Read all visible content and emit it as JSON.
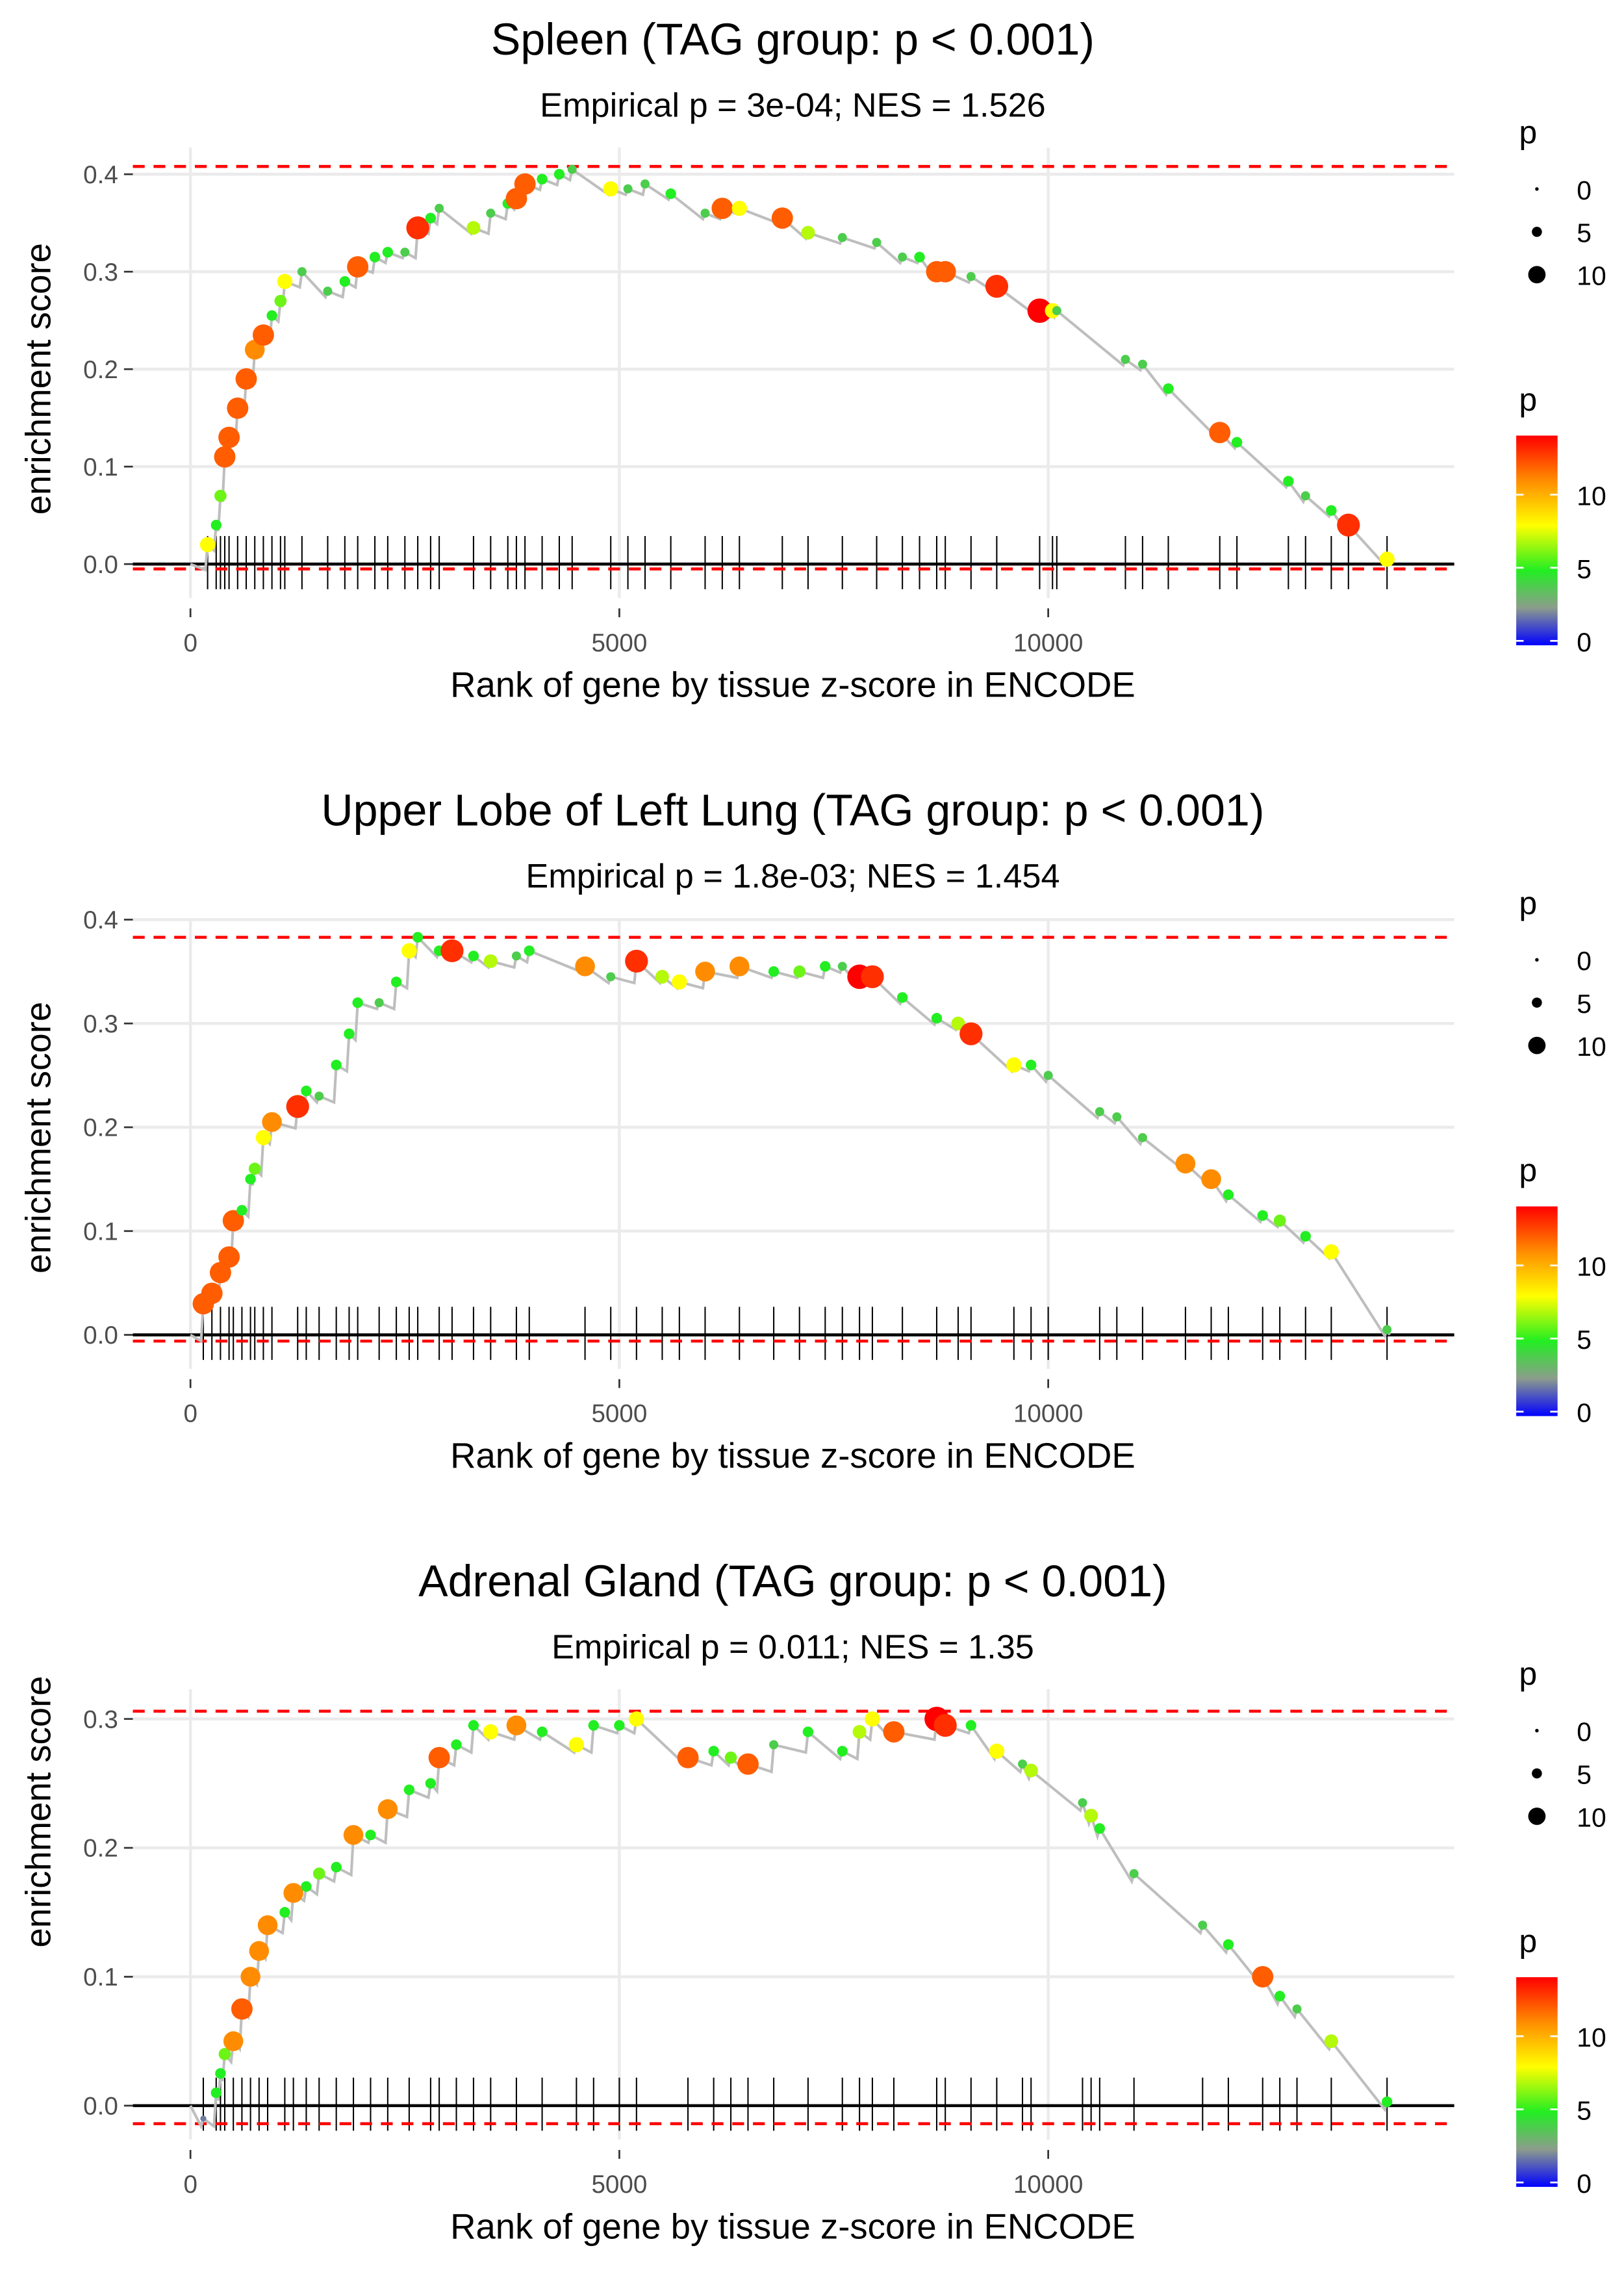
{
  "legend": {
    "size_title": "p",
    "size_breaks": [
      0,
      5,
      10
    ],
    "size_labels": [
      "0",
      "5",
      "10"
    ],
    "color_title": "p",
    "color_breaks": [
      0,
      5,
      10
    ],
    "color_labels": [
      "0",
      "5",
      "10"
    ],
    "color_limits": [
      0,
      14
    ],
    "color_stops": [
      {
        "p": 0,
        "color": "#0000ff"
      },
      {
        "p": 2.5,
        "color": "#8c9c8c"
      },
      {
        "p": 5,
        "color": "#22ee22"
      },
      {
        "p": 8,
        "color": "#ffff00"
      },
      {
        "p": 11,
        "color": "#ff8c00"
      },
      {
        "p": 14,
        "color": "#ff0000"
      }
    ]
  },
  "colors": {
    "curve": "#bebebe",
    "dashed": "#ff0000",
    "rug": "#000000",
    "zero_line": "#000000",
    "grid": "#ebebeb"
  },
  "chart_data": [
    {
      "type": "line",
      "title": "Spleen (TAG group: p < 0.001)",
      "subtitle": "Empirical p = 3e-04; NES = 1.526",
      "xlabel": "Rank of gene by tissue z-score in ENCODE",
      "ylabel": "enrichment score",
      "xlim": [
        -700,
        14700
      ],
      "ylim": [
        -0.027,
        0.427
      ],
      "xticks": [
        0,
        5000,
        10000
      ],
      "xtick_labels": [
        "0",
        "5000",
        "10000"
      ],
      "yticks": [
        0,
        0.1,
        0.2,
        0.3,
        0.4
      ],
      "ytick_labels": [
        "0.0",
        "0.1",
        "0.2",
        "0.3",
        "0.4"
      ],
      "max_es": 0.408,
      "min_es": -0.005,
      "n_genes": 13980,
      "hits": [
        [
          200,
          0.02,
          8
        ],
        [
          300,
          0.04,
          5
        ],
        [
          350,
          0.07,
          6
        ],
        [
          400,
          0.11,
          12
        ],
        [
          450,
          0.13,
          12
        ],
        [
          550,
          0.16,
          12
        ],
        [
          650,
          0.19,
          12
        ],
        [
          750,
          0.22,
          11
        ],
        [
          850,
          0.235,
          12
        ],
        [
          950,
          0.255,
          5
        ],
        [
          1050,
          0.27,
          6
        ],
        [
          1100,
          0.29,
          8
        ],
        [
          1300,
          0.3,
          4
        ],
        [
          1600,
          0.28,
          4
        ],
        [
          1800,
          0.29,
          5
        ],
        [
          1950,
          0.305,
          12
        ],
        [
          2150,
          0.315,
          5
        ],
        [
          2300,
          0.32,
          5
        ],
        [
          2500,
          0.32,
          4
        ],
        [
          2650,
          0.345,
          13
        ],
        [
          2800,
          0.355,
          5
        ],
        [
          2900,
          0.365,
          4
        ],
        [
          3300,
          0.345,
          7
        ],
        [
          3500,
          0.36,
          4
        ],
        [
          3700,
          0.37,
          5
        ],
        [
          3800,
          0.375,
          12
        ],
        [
          3900,
          0.39,
          12
        ],
        [
          4100,
          0.395,
          5
        ],
        [
          4300,
          0.4,
          5
        ],
        [
          4450,
          0.405,
          4
        ],
        [
          4900,
          0.385,
          8
        ],
        [
          5100,
          0.385,
          4
        ],
        [
          5300,
          0.39,
          4
        ],
        [
          5600,
          0.38,
          5
        ],
        [
          6000,
          0.36,
          4
        ],
        [
          6200,
          0.365,
          12
        ],
        [
          6400,
          0.365,
          8
        ],
        [
          6900,
          0.355,
          12
        ],
        [
          7200,
          0.34,
          7
        ],
        [
          7600,
          0.335,
          4
        ],
        [
          8000,
          0.33,
          4
        ],
        [
          8300,
          0.315,
          4
        ],
        [
          8500,
          0.315,
          5
        ],
        [
          8700,
          0.3,
          12
        ],
        [
          8800,
          0.3,
          12
        ],
        [
          9100,
          0.295,
          4
        ],
        [
          9400,
          0.285,
          13
        ],
        [
          9900,
          0.26,
          14
        ],
        [
          10050,
          0.26,
          8
        ],
        [
          10100,
          0.26,
          4
        ],
        [
          10900,
          0.21,
          4
        ],
        [
          11100,
          0.205,
          4
        ],
        [
          11400,
          0.18,
          5
        ],
        [
          12000,
          0.135,
          12
        ],
        [
          12200,
          0.125,
          5
        ],
        [
          12800,
          0.085,
          5
        ],
        [
          13000,
          0.07,
          4
        ],
        [
          13300,
          0.055,
          5
        ],
        [
          13500,
          0.04,
          13
        ],
        [
          13950,
          0.005,
          8
        ]
      ]
    },
    {
      "type": "line",
      "title": "Upper Lobe of Left Lung (TAG group: p < 0.001)",
      "subtitle": "Empirical p = 1.8e-03; NES = 1.454",
      "xlabel": "Rank of gene by tissue z-score in ENCODE",
      "ylabel": "enrichment score",
      "xlim": [
        -700,
        14700
      ],
      "ylim": [
        -0.02,
        0.41
      ],
      "xticks": [
        0,
        5000,
        10000
      ],
      "xtick_labels": [
        "0",
        "5000",
        "10000"
      ],
      "yticks": [
        0,
        0.1,
        0.2,
        0.3,
        0.4
      ],
      "ytick_labels": [
        "0.0",
        "0.1",
        "0.2",
        "0.3",
        "0.4"
      ],
      "max_es": 0.383,
      "min_es": -0.006,
      "n_genes": 13980,
      "hits": [
        [
          150,
          0.03,
          12
        ],
        [
          250,
          0.04,
          12
        ],
        [
          350,
          0.06,
          12
        ],
        [
          450,
          0.075,
          12
        ],
        [
          500,
          0.11,
          12
        ],
        [
          600,
          0.12,
          5
        ],
        [
          700,
          0.15,
          5
        ],
        [
          750,
          0.16,
          6
        ],
        [
          850,
          0.19,
          8
        ],
        [
          950,
          0.205,
          11
        ],
        [
          1250,
          0.22,
          13
        ],
        [
          1350,
          0.235,
          5
        ],
        [
          1500,
          0.23,
          4
        ],
        [
          1700,
          0.26,
          5
        ],
        [
          1850,
          0.29,
          5
        ],
        [
          1950,
          0.32,
          5
        ],
        [
          2200,
          0.32,
          4
        ],
        [
          2400,
          0.34,
          5
        ],
        [
          2550,
          0.37,
          8
        ],
        [
          2650,
          0.383,
          5
        ],
        [
          2900,
          0.37,
          5
        ],
        [
          3050,
          0.37,
          13
        ],
        [
          3300,
          0.365,
          5
        ],
        [
          3500,
          0.36,
          7
        ],
        [
          3800,
          0.365,
          4
        ],
        [
          3950,
          0.37,
          5
        ],
        [
          4600,
          0.355,
          11
        ],
        [
          4900,
          0.345,
          4
        ],
        [
          5200,
          0.36,
          13
        ],
        [
          5500,
          0.345,
          7
        ],
        [
          5700,
          0.34,
          8
        ],
        [
          6000,
          0.35,
          11
        ],
        [
          6400,
          0.355,
          11
        ],
        [
          6800,
          0.35,
          5
        ],
        [
          7100,
          0.35,
          6
        ],
        [
          7400,
          0.355,
          5
        ],
        [
          7600,
          0.355,
          4
        ],
        [
          7800,
          0.345,
          14
        ],
        [
          7950,
          0.345,
          13
        ],
        [
          8300,
          0.325,
          5
        ],
        [
          8700,
          0.305,
          5
        ],
        [
          8950,
          0.3,
          7
        ],
        [
          9100,
          0.29,
          13
        ],
        [
          9600,
          0.26,
          8
        ],
        [
          9800,
          0.26,
          5
        ],
        [
          10000,
          0.25,
          4
        ],
        [
          10600,
          0.215,
          4
        ],
        [
          10800,
          0.21,
          4
        ],
        [
          11100,
          0.19,
          4
        ],
        [
          11600,
          0.165,
          11
        ],
        [
          11900,
          0.15,
          11
        ],
        [
          12100,
          0.135,
          5
        ],
        [
          12500,
          0.115,
          5
        ],
        [
          12700,
          0.11,
          6
        ],
        [
          13000,
          0.095,
          5
        ],
        [
          13300,
          0.08,
          8
        ],
        [
          13950,
          0.005,
          4
        ]
      ]
    },
    {
      "type": "line",
      "title": "Adrenal Gland (TAG group: p < 0.001)",
      "subtitle": "Empirical p = 0.011; NES = 1.35",
      "xlabel": "Rank of gene by tissue z-score in ENCODE",
      "ylabel": "enrichment score",
      "xlim": [
        -700,
        14700
      ],
      "ylim": [
        -0.022,
        0.322
      ],
      "xticks": [
        0,
        5000,
        10000
      ],
      "xtick_labels": [
        "0",
        "5000",
        "10000"
      ],
      "yticks": [
        0,
        0.1,
        0.2,
        0.3
      ],
      "ytick_labels": [
        "0.0",
        "0.1",
        "0.2",
        "0.3"
      ],
      "max_es": 0.306,
      "min_es": -0.014,
      "n_genes": 13980,
      "hits": [
        [
          150,
          -0.01,
          2
        ],
        [
          300,
          0.01,
          5
        ],
        [
          350,
          0.025,
          5
        ],
        [
          400,
          0.04,
          6
        ],
        [
          500,
          0.05,
          11
        ],
        [
          600,
          0.075,
          12
        ],
        [
          700,
          0.1,
          11
        ],
        [
          800,
          0.12,
          11
        ],
        [
          900,
          0.14,
          11
        ],
        [
          1100,
          0.15,
          5
        ],
        [
          1200,
          0.165,
          11
        ],
        [
          1350,
          0.17,
          5
        ],
        [
          1500,
          0.18,
          6
        ],
        [
          1700,
          0.185,
          5
        ],
        [
          1900,
          0.21,
          11
        ],
        [
          2100,
          0.21,
          5
        ],
        [
          2300,
          0.23,
          11
        ],
        [
          2550,
          0.245,
          5
        ],
        [
          2800,
          0.25,
          5
        ],
        [
          2900,
          0.27,
          12
        ],
        [
          3100,
          0.28,
          5
        ],
        [
          3300,
          0.295,
          5
        ],
        [
          3500,
          0.29,
          8
        ],
        [
          3800,
          0.295,
          11
        ],
        [
          4100,
          0.29,
          5
        ],
        [
          4500,
          0.28,
          8
        ],
        [
          4700,
          0.295,
          5
        ],
        [
          5000,
          0.295,
          5
        ],
        [
          5200,
          0.3,
          8
        ],
        [
          5800,
          0.27,
          12
        ],
        [
          6100,
          0.275,
          5
        ],
        [
          6300,
          0.27,
          6
        ],
        [
          6500,
          0.265,
          12
        ],
        [
          6800,
          0.28,
          4
        ],
        [
          7200,
          0.29,
          5
        ],
        [
          7600,
          0.275,
          5
        ],
        [
          7800,
          0.29,
          7
        ],
        [
          7950,
          0.3,
          8
        ],
        [
          8200,
          0.29,
          12
        ],
        [
          8700,
          0.3,
          14
        ],
        [
          8800,
          0.295,
          13
        ],
        [
          9100,
          0.295,
          5
        ],
        [
          9400,
          0.275,
          8
        ],
        [
          9700,
          0.265,
          4
        ],
        [
          9800,
          0.26,
          7
        ],
        [
          10400,
          0.235,
          4
        ],
        [
          10500,
          0.225,
          7
        ],
        [
          10600,
          0.215,
          5
        ],
        [
          11000,
          0.18,
          4
        ],
        [
          11800,
          0.14,
          4
        ],
        [
          12100,
          0.125,
          5
        ],
        [
          12500,
          0.1,
          12
        ],
        [
          12700,
          0.085,
          5
        ],
        [
          12900,
          0.075,
          4
        ],
        [
          13300,
          0.05,
          7
        ],
        [
          13950,
          0.003,
          5
        ]
      ]
    }
  ]
}
